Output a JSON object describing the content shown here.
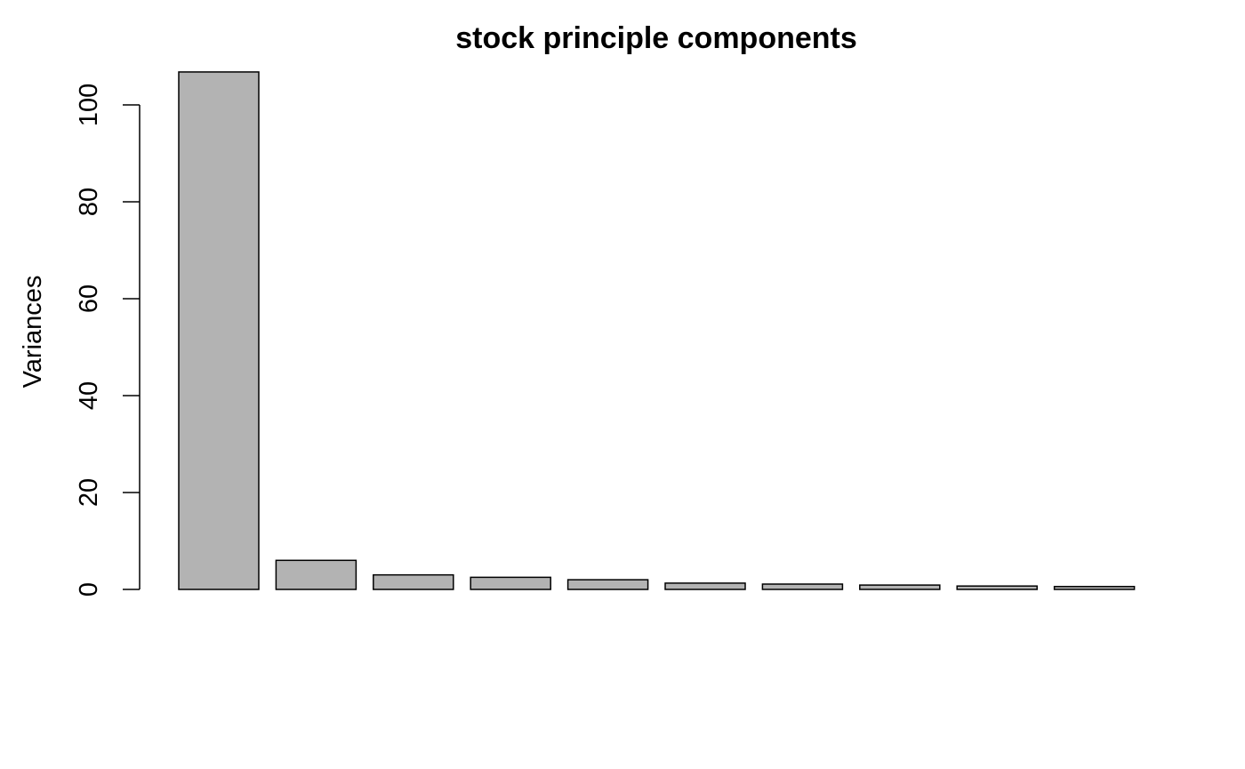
{
  "chart_data": {
    "type": "bar",
    "title": "stock principle components",
    "xlabel": "",
    "ylabel": "Variances",
    "categories": [
      "",
      "",
      "",
      "",
      "",
      "",
      "",
      "",
      "",
      ""
    ],
    "values": [
      106.8,
      6.0,
      3.0,
      2.5,
      2.0,
      1.3,
      1.1,
      0.9,
      0.7,
      0.6
    ],
    "ylim": [
      0,
      100
    ],
    "yticks": [
      0,
      20,
      40,
      60,
      80,
      100
    ],
    "ytick_labels": [
      "0",
      "20",
      "40",
      "60",
      "80",
      "100"
    ],
    "grid": false,
    "legend": "none",
    "bar_fill": "#b3b3b3",
    "bar_stroke": "#000000"
  }
}
